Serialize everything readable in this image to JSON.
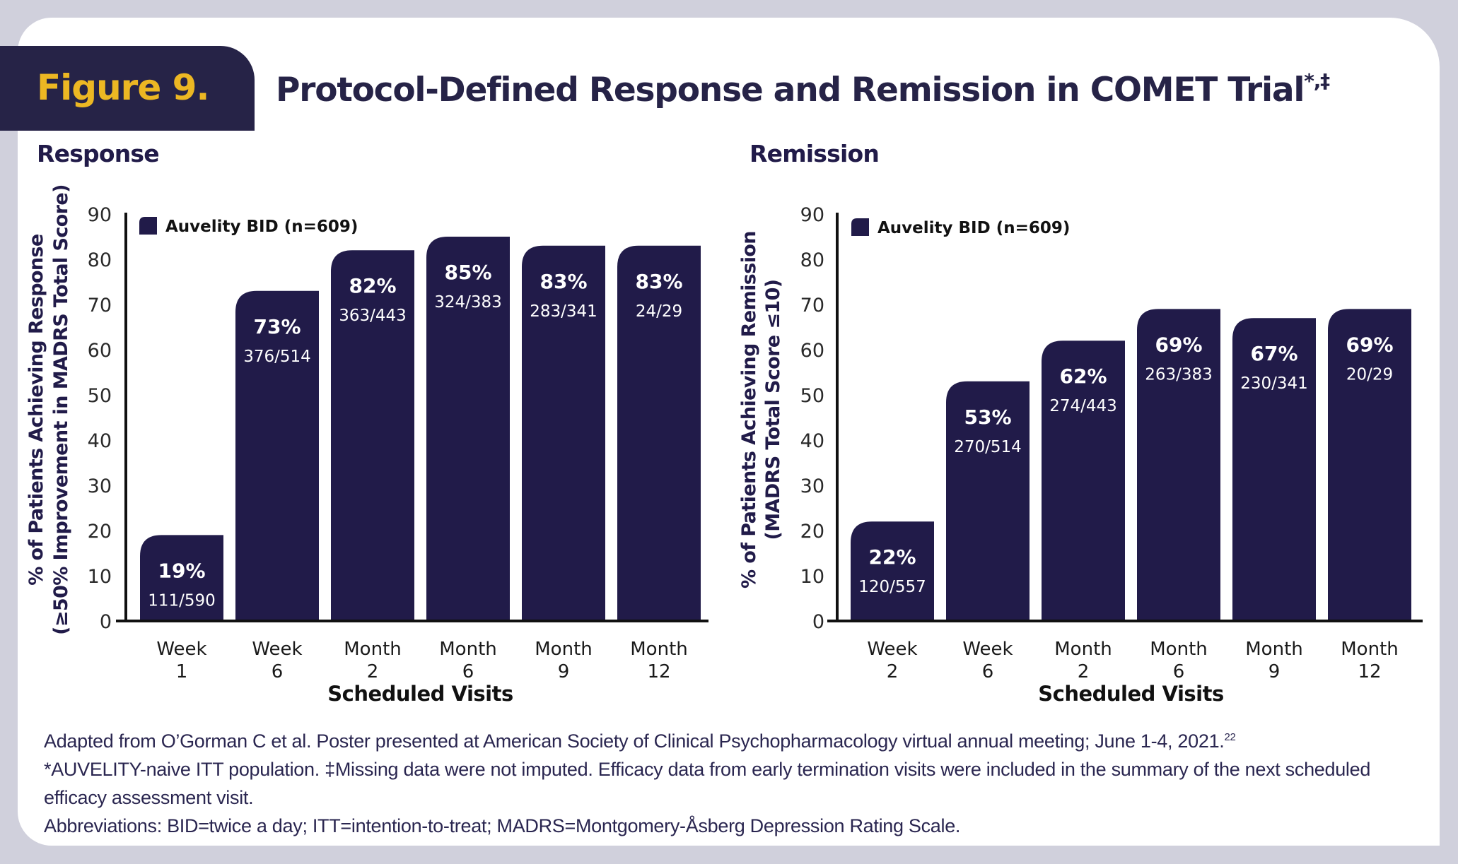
{
  "figure": {
    "badge": "Figure 9.",
    "title": "Protocol-Defined Response and Remission in COMET Trial",
    "title_superscript": "*,‡",
    "colors": {
      "bar": "#211b49",
      "badge_bg": "#262347",
      "badge_text": "#ecb723",
      "frame": "#d0d0dc"
    }
  },
  "chart_data": [
    {
      "type": "bar",
      "section_title": "Response",
      "title": "Response",
      "xlabel": "Scheduled Visits",
      "ylabel_line1": "% of Patients Achieving Response",
      "ylabel_line2": "(≥50% Improvement in MADRS Total Score)",
      "ylim": [
        0,
        90
      ],
      "yticks": [
        0,
        10,
        20,
        30,
        40,
        50,
        60,
        70,
        80,
        90
      ],
      "legend": "Auvelity BID (n=609)",
      "legend_position": "top-left",
      "categories": [
        [
          "Week",
          "1"
        ],
        [
          "Week",
          "6"
        ],
        [
          "Month",
          "2"
        ],
        [
          "Month",
          "6"
        ],
        [
          "Month",
          "9"
        ],
        [
          "Month",
          "12"
        ]
      ],
      "values": [
        19,
        73,
        82,
        85,
        83,
        83
      ],
      "value_labels": [
        "19%",
        "73%",
        "82%",
        "85%",
        "83%",
        "83%"
      ],
      "fractions": [
        "111/590",
        "376/514",
        "363/443",
        "324/383",
        "283/341",
        "24/29"
      ]
    },
    {
      "type": "bar",
      "section_title": "Remission",
      "title": "Remission",
      "xlabel": "Scheduled Visits",
      "ylabel_line1": "% of Patients Achieving Remission",
      "ylabel_line2": "(MADRS Total Score ≤10)",
      "ylim": [
        0,
        90
      ],
      "yticks": [
        0,
        10,
        20,
        30,
        40,
        50,
        60,
        70,
        80,
        90
      ],
      "legend": "Auvelity BID (n=609)",
      "legend_position": "top-left",
      "categories": [
        [
          "Week",
          "2"
        ],
        [
          "Week",
          "6"
        ],
        [
          "Month",
          "2"
        ],
        [
          "Month",
          "6"
        ],
        [
          "Month",
          "9"
        ],
        [
          "Month",
          "12"
        ]
      ],
      "values": [
        22,
        53,
        62,
        69,
        67,
        69
      ],
      "value_labels": [
        "22%",
        "53%",
        "62%",
        "69%",
        "67%",
        "69%"
      ],
      "fractions": [
        "120/557",
        "270/514",
        "274/443",
        "263/383",
        "230/341",
        "20/29"
      ]
    }
  ],
  "footnotes": {
    "source": "Adapted from O’Gorman C et al. Poster presented at American Society of Clinical Psychopharmacology virtual annual meeting; June 1-4, 2021.",
    "source_ref": "22",
    "notes": "*AUVELITY-naive ITT population. ‡Missing data were not imputed. Efficacy data from early termination visits were included in the summary of the next scheduled efficacy assessment visit.",
    "abbreviations": "Abbreviations: BID=twice a day; ITT=intention-to-treat; MADRS=Montgomery-Åsberg Depression Rating Scale."
  }
}
